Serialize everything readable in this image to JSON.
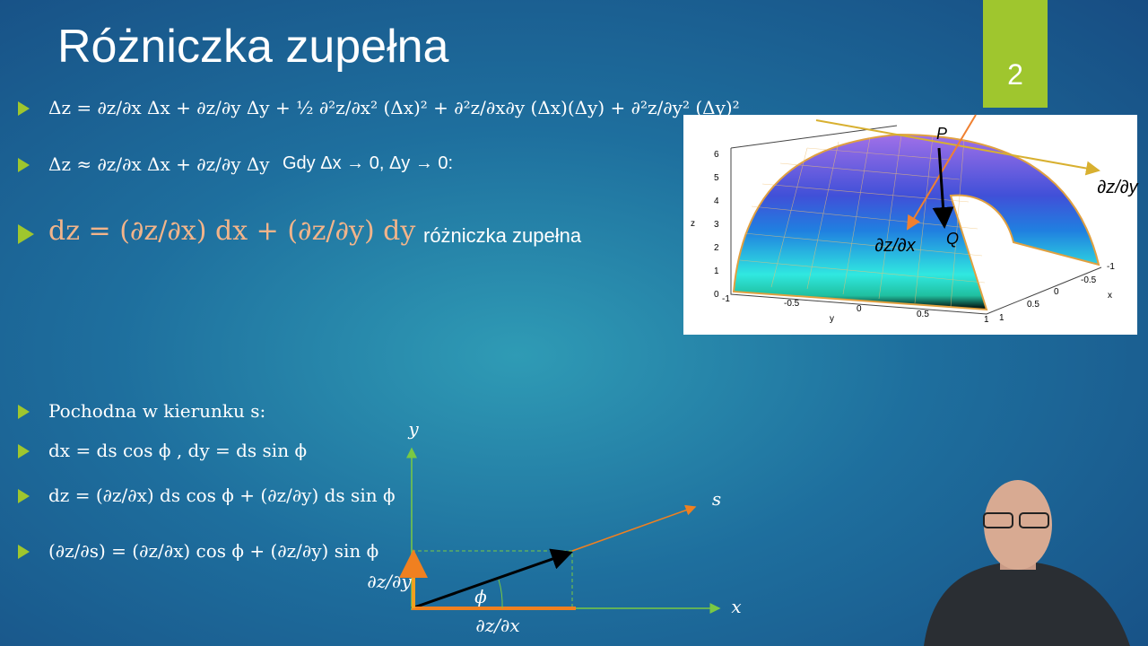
{
  "title": "Różniczka zupełna",
  "slide_number": "2",
  "bullets": [
    {
      "formula": "Δz = ∂z/∂x Δx + ∂z/∂y Δy + ½ ∂²z/∂x² (Δx)² + ∂²z/∂x∂y (Δx)(Δy) + ∂²z/∂y² (Δy)²"
    },
    {
      "formula": "Δz ≈ ∂z/∂x Δx + ∂z/∂y Δy",
      "note": "Gdy Δx → 0, Δy → 0:"
    },
    {
      "formula": "dz = (∂z/∂x) dx + (∂z/∂y) dy",
      "note": "różniczka zupełna"
    },
    {
      "text": "Pochodna w kierunku s:"
    },
    {
      "formula": "dx = ds cos ϕ , dy = ds sin ϕ"
    },
    {
      "formula": "dz = (∂z/∂x) ds cos ϕ + (∂z/∂y) ds sin ϕ"
    },
    {
      "formula": "(∂z/∂s) = (∂z/∂x) cos ϕ + (∂z/∂y) sin ϕ"
    }
  ],
  "surface_plot": {
    "point_p": "P",
    "point_q": "Q",
    "label_dzdx": "∂z/∂x",
    "label_dzdy": "∂z/∂y",
    "z_axis": "z",
    "y_axis": "y",
    "x_axis": "x",
    "z_ticks": [
      "0",
      "1",
      "2",
      "3",
      "4",
      "5",
      "6"
    ],
    "y_ticks": [
      "-1",
      "-0.5",
      "0",
      "0.5",
      "1"
    ],
    "x_ticks": [
      "-1",
      "-0.5",
      "0",
      "0.5",
      "1"
    ]
  },
  "diagram": {
    "y_axis": "y",
    "x_axis": "x",
    "s_axis": "s",
    "dzdy": "∂z/∂y",
    "dzdx": "∂z/∂x",
    "angle": "ϕ"
  }
}
